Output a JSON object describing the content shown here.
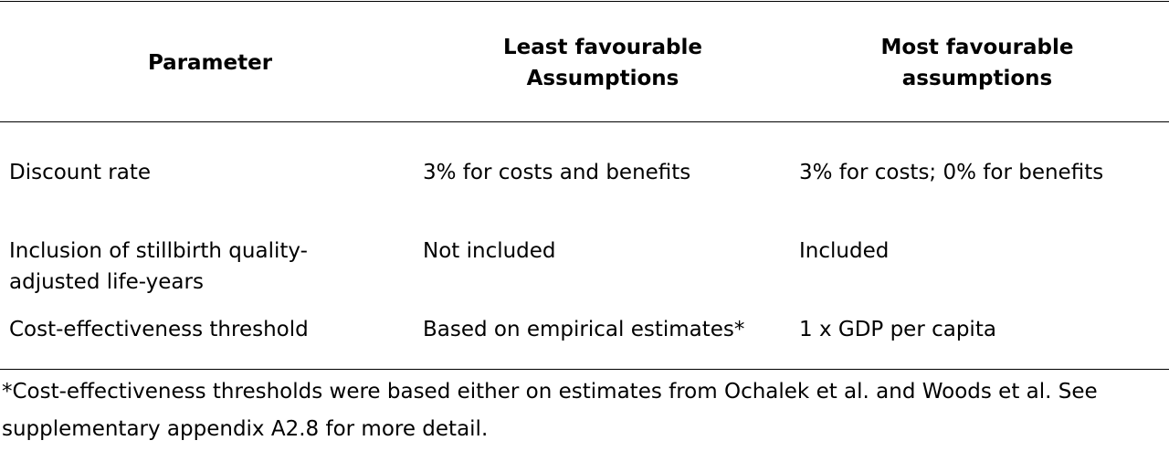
{
  "table": {
    "headers": {
      "parameter": "Parameter",
      "least": [
        "Least favourable",
        "Assumptions"
      ],
      "most": [
        "Most favourable",
        "assumptions"
      ]
    },
    "rows": [
      {
        "parameter": [
          "Discount rate"
        ],
        "least": "3% for costs and benefits",
        "most": "3% for costs; 0% for benefits"
      },
      {
        "parameter": [
          "Inclusion of stillbirth quality-",
          "adjusted life-years"
        ],
        "least": "Not included",
        "most": "Included"
      },
      {
        "parameter": [
          "Cost-effectiveness threshold"
        ],
        "least": "Based on empirical estimates*",
        "most": "1 x GDP per capita"
      }
    ]
  },
  "footnote": "*Cost-effectiveness thresholds were based either on estimates from Ochalek et al. and Woods et al. See supplementary appendix A2.8 for more detail."
}
